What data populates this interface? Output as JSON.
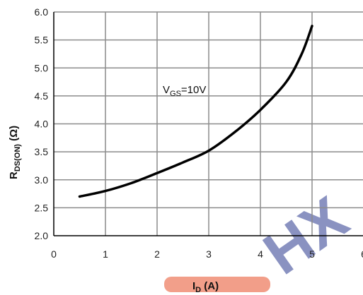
{
  "chart_data": {
    "type": "line",
    "xlabel": {
      "main": "I",
      "sub": "D",
      "unit": " (A)"
    },
    "ylabel": {
      "main": "R",
      "sub": "DS(ON)",
      "unit": " (Ω)"
    },
    "annotation": {
      "main": "V",
      "sub": "GS",
      "rest": "=10V"
    },
    "xlim": [
      0,
      6
    ],
    "ylim": [
      2.0,
      6.0
    ],
    "x_ticks": [
      "0",
      "1",
      "2",
      "3",
      "4",
      "5",
      "6"
    ],
    "y_ticks": [
      "2.0",
      "2.5",
      "3.0",
      "3.5",
      "4.0",
      "4.5",
      "5.0",
      "5.5",
      "6.0"
    ],
    "grid": true,
    "series": [
      {
        "color": "#000000",
        "x": [
          0.5,
          1.0,
          1.5,
          2.0,
          2.5,
          3.0,
          3.5,
          4.0,
          4.5,
          4.8,
          5.0
        ],
        "y": [
          2.7,
          2.8,
          2.94,
          3.12,
          3.31,
          3.52,
          3.85,
          4.25,
          4.75,
          5.25,
          5.75
        ]
      }
    ]
  },
  "watermark": {
    "text": "HX",
    "colors": {
      "primary": "#2b3a8f",
      "accent": "#e8502a"
    }
  }
}
